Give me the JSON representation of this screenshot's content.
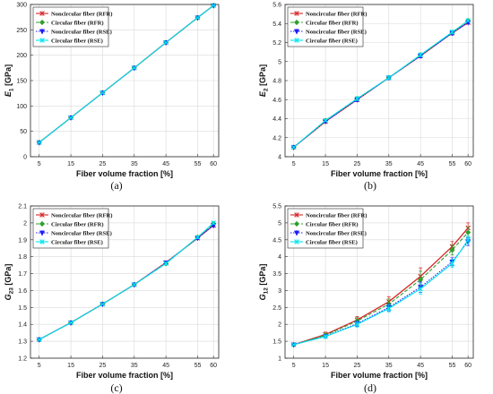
{
  "chart_data": [
    {
      "type": "line",
      "caption": "(a)",
      "xlabel": "Fiber volume fraction [%]",
      "ylabel_main": "E",
      "ylabel_sub": "1",
      "ylabel_unit": " [GPa]",
      "x": [
        5,
        15,
        25,
        35,
        45,
        55,
        60
      ],
      "x_ticks": [
        5,
        15,
        25,
        35,
        45,
        55,
        60
      ],
      "ylim": [
        0,
        300
      ],
      "y_ticks": [
        "0",
        "50",
        "100",
        "150",
        "200",
        "250",
        "300"
      ],
      "y_tick_values": [
        0,
        50,
        100,
        150,
        200,
        250,
        300
      ],
      "grid": true,
      "legend": "top-left",
      "series": [
        {
          "name": "Noncircular fiber (RFR)",
          "color": "#d62728",
          "values": [
            28,
            77,
            126,
            175,
            225,
            274,
            298
          ],
          "errors": [
            1,
            1,
            1,
            1,
            1,
            1,
            1
          ]
        },
        {
          "name": "Circular fiber (RFR)",
          "color": "#2ca02c",
          "values": [
            28,
            77,
            126,
            175,
            225,
            274,
            298
          ],
          "errors": [
            1,
            1,
            1,
            1,
            1,
            1,
            1
          ]
        },
        {
          "name": "Noncircular fiber (RSE)",
          "color": "#1a1aff",
          "values": [
            28,
            77,
            126,
            175,
            225,
            274,
            298
          ],
          "errors": [
            1,
            1,
            1,
            1,
            1,
            1,
            1
          ]
        },
        {
          "name": "Circular fiber (RSE)",
          "color": "#00e5ee",
          "values": [
            28,
            77,
            126,
            175,
            225,
            274,
            298
          ],
          "errors": [
            1,
            1,
            1,
            1,
            1,
            1,
            1
          ]
        }
      ]
    },
    {
      "type": "line",
      "caption": "(b)",
      "xlabel": "Fiber volume fraction [%]",
      "ylabel_main": "E",
      "ylabel_sub": "2",
      "ylabel_unit": " [GPa]",
      "x": [
        5,
        15,
        25,
        35,
        45,
        55,
        60
      ],
      "x_ticks": [
        5,
        15,
        25,
        35,
        45,
        55,
        60
      ],
      "ylim": [
        4,
        5.6
      ],
      "y_ticks": [
        "4",
        "4.2",
        "4.4",
        "4.6",
        "4.8",
        "5",
        "5.2",
        "5.4",
        "5.6"
      ],
      "y_tick_values": [
        4,
        4.2,
        4.4,
        4.6,
        4.8,
        5,
        5.2,
        5.4,
        5.6
      ],
      "grid": true,
      "legend": "top-left",
      "series": [
        {
          "name": "Noncircular fiber (RFR)",
          "color": "#d62728",
          "values": [
            4.1,
            4.37,
            4.6,
            4.83,
            5.06,
            5.3,
            5.41
          ],
          "errors": [
            0.01,
            0.01,
            0.02,
            0.02,
            0.02,
            0.02,
            0.01
          ]
        },
        {
          "name": "Circular fiber (RFR)",
          "color": "#2ca02c",
          "values": [
            4.1,
            4.38,
            4.61,
            4.83,
            5.07,
            5.3,
            5.43
          ],
          "errors": [
            0.01,
            0.01,
            0.02,
            0.02,
            0.02,
            0.02,
            0.01
          ]
        },
        {
          "name": "Noncircular fiber (RSE)",
          "color": "#1a1aff",
          "values": [
            4.1,
            4.37,
            4.6,
            4.83,
            5.06,
            5.3,
            5.41
          ],
          "errors": [
            0.01,
            0.01,
            0.02,
            0.02,
            0.02,
            0.02,
            0.01
          ]
        },
        {
          "name": "Circular fiber (RSE)",
          "color": "#00e5ee",
          "values": [
            4.1,
            4.38,
            4.61,
            4.83,
            5.07,
            5.31,
            5.43
          ],
          "errors": [
            0.01,
            0.01,
            0.02,
            0.02,
            0.02,
            0.02,
            0.01
          ]
        }
      ]
    },
    {
      "type": "line",
      "caption": "(c)",
      "xlabel": "Fiber volume fraction [%]",
      "ylabel_main": "G",
      "ylabel_sub": "23",
      "ylabel_unit": " [GPa]",
      "x": [
        5,
        15,
        25,
        35,
        45,
        55,
        60
      ],
      "x_ticks": [
        5,
        15,
        25,
        35,
        45,
        55,
        60
      ],
      "ylim": [
        1.2,
        2.1
      ],
      "y_ticks": [
        "1.2",
        "1.3",
        "1.4",
        "1.5",
        "1.6",
        "1.7",
        "1.8",
        "1.9",
        "2",
        "2.1"
      ],
      "y_tick_values": [
        1.2,
        1.3,
        1.4,
        1.5,
        1.6,
        1.7,
        1.8,
        1.9,
        2.0,
        2.1
      ],
      "grid": true,
      "legend": "top-left",
      "series": [
        {
          "name": "Noncircular fiber (RFR)",
          "color": "#d62728",
          "values": [
            1.31,
            1.41,
            1.52,
            1.635,
            1.765,
            1.91,
            1.985
          ],
          "errors": [
            0.003,
            0.003,
            0.004,
            0.005,
            0.008,
            0.008,
            0.008
          ]
        },
        {
          "name": "Circular fiber (RFR)",
          "color": "#2ca02c",
          "values": [
            1.31,
            1.41,
            1.52,
            1.635,
            1.76,
            1.915,
            1.995
          ],
          "errors": [
            0.003,
            0.003,
            0.004,
            0.005,
            0.008,
            0.008,
            0.008
          ]
        },
        {
          "name": "Noncircular fiber (RSE)",
          "color": "#1a1aff",
          "values": [
            1.31,
            1.41,
            1.52,
            1.635,
            1.765,
            1.91,
            1.985
          ],
          "errors": [
            0.003,
            0.003,
            0.004,
            0.005,
            0.008,
            0.008,
            0.008
          ]
        },
        {
          "name": "Circular fiber (RSE)",
          "color": "#00e5ee",
          "values": [
            1.31,
            1.41,
            1.52,
            1.635,
            1.76,
            1.915,
            2.0
          ],
          "errors": [
            0.003,
            0.003,
            0.004,
            0.005,
            0.008,
            0.008,
            0.008
          ]
        }
      ]
    },
    {
      "type": "line",
      "caption": "(d)",
      "xlabel": "Fiber volume fraction [%]",
      "ylabel_main": "G",
      "ylabel_sub": "12",
      "ylabel_unit": " [GPa]",
      "x": [
        5,
        15,
        25,
        35,
        45,
        55,
        60
      ],
      "x_ticks": [
        5,
        15,
        25,
        35,
        45,
        55,
        60
      ],
      "ylim": [
        1,
        5.5
      ],
      "y_ticks": [
        "1",
        "1.5",
        "2",
        "2.5",
        "3",
        "3.5",
        "4",
        "4.5",
        "5",
        "5.5"
      ],
      "y_tick_values": [
        1,
        1.5,
        2,
        2.5,
        3,
        3.5,
        4,
        4.5,
        5,
        5.5
      ],
      "grid": true,
      "legend": "top-left",
      "series": [
        {
          "name": "Noncircular fiber (RFR)",
          "color": "#d62728",
          "values": [
            1.4,
            1.7,
            2.13,
            2.67,
            3.42,
            4.3,
            4.85
          ],
          "errors": [
            0.02,
            0.07,
            0.1,
            0.15,
            0.25,
            0.15,
            0.15
          ]
        },
        {
          "name": "Circular fiber (RFR)",
          "color": "#2ca02c",
          "values": [
            1.4,
            1.68,
            2.1,
            2.6,
            3.32,
            4.2,
            4.72
          ],
          "errors": [
            0.02,
            0.06,
            0.1,
            0.15,
            0.25,
            0.15,
            0.15
          ]
        },
        {
          "name": "Noncircular fiber (RSE)",
          "color": "#1a1aff",
          "values": [
            1.4,
            1.65,
            2.02,
            2.5,
            3.1,
            3.85,
            4.45
          ],
          "errors": [
            0.02,
            0.05,
            0.08,
            0.1,
            0.15,
            0.12,
            0.12
          ]
        },
        {
          "name": "Circular fiber (RSE)",
          "color": "#00e5ee",
          "values": [
            1.4,
            1.64,
            2.0,
            2.47,
            3.05,
            3.8,
            4.5
          ],
          "errors": [
            0.02,
            0.05,
            0.08,
            0.1,
            0.15,
            0.12,
            0.12
          ]
        }
      ]
    }
  ]
}
